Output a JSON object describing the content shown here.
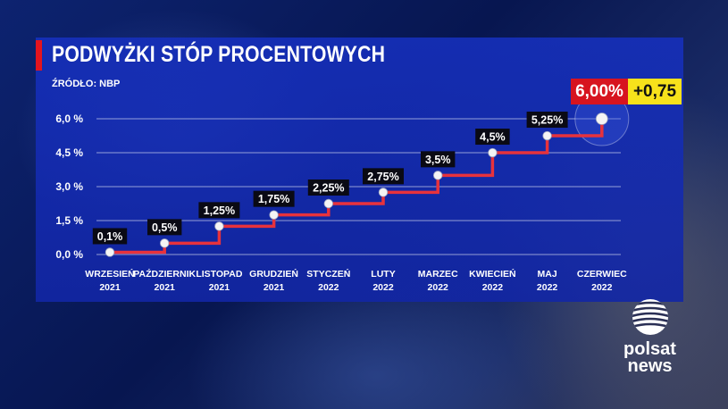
{
  "title": "PODWYŻKI STÓP PROCENTOWYCH",
  "source": "ŹRÓDŁO: NBP",
  "highlight": {
    "rate": "6,00%",
    "change": "+0,75"
  },
  "brand": {
    "line1": "polsat",
    "line2": "news",
    "icon": "polsat-globe-icon"
  },
  "colors": {
    "panel": "#1a33bb",
    "line": "#e8323c",
    "accent_red": "#d7141f",
    "accent_yellow": "#f7e21b"
  },
  "chart_data": {
    "type": "line",
    "step": true,
    "categories": [
      [
        "WRZESIEŃ",
        "2021"
      ],
      [
        "PAŹDZIERNIK",
        "2021"
      ],
      [
        "LISTOPAD",
        "2021"
      ],
      [
        "GRUDZIEŃ",
        "2021"
      ],
      [
        "STYCZEŃ",
        "2022"
      ],
      [
        "LUTY",
        "2022"
      ],
      [
        "MARZEC",
        "2022"
      ],
      [
        "KWIECIEŃ",
        "2022"
      ],
      [
        "MAJ",
        "2022"
      ],
      [
        "CZERWIEC",
        "2022"
      ]
    ],
    "values": [
      0.1,
      0.5,
      1.25,
      1.75,
      2.25,
      2.75,
      3.5,
      4.5,
      5.25,
      6.0
    ],
    "labels": [
      "0,1%",
      "0,5%",
      "1,25%",
      "1,75%",
      "2,25%",
      "2,75%",
      "3,5%",
      "4,5%",
      "5,25%",
      ""
    ],
    "yticks": [
      0,
      1.5,
      3.0,
      4.5,
      6.0
    ],
    "ytick_labels": [
      "0,0 %",
      "1,5 %",
      "3,0 %",
      "4,5 %",
      "6,0 %"
    ],
    "ylim": [
      0,
      6.0
    ],
    "grid": true,
    "xlabel": "",
    "ylabel": ""
  }
}
